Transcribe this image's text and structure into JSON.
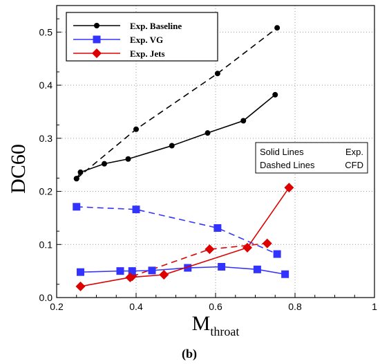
{
  "chart_data": {
    "type": "line",
    "xlabel_main": "M",
    "xlabel_sub": "throat",
    "ylabel": "DC60",
    "xlim": [
      0.2,
      1.0
    ],
    "ylim": [
      0.0,
      0.55
    ],
    "x_ticks": [
      0.2,
      0.4,
      0.6,
      0.8,
      1.0
    ],
    "x_tick_labels": [
      "0.2",
      "0.4",
      "0.6",
      "0.8",
      "1"
    ],
    "y_ticks": [
      0.0,
      0.1,
      0.2,
      0.3,
      0.4,
      0.5
    ],
    "y_tick_labels": [
      "0.0",
      "0.1",
      "0.2",
      "0.3",
      "0.4",
      "0.5"
    ],
    "grid": "dotted",
    "legend_position": "top-left",
    "note_lines": [
      [
        "Solid Lines",
        "Exp."
      ],
      [
        "Dashed Lines",
        "CFD"
      ]
    ],
    "panel_label": "(b)",
    "series": [
      {
        "name": "Exp. Baseline",
        "color": "#000000",
        "marker": "circle",
        "line": "solid",
        "x": [
          0.25,
          0.26,
          0.32,
          0.38,
          0.49,
          0.58,
          0.67,
          0.75
        ],
        "y": [
          0.224,
          0.236,
          0.252,
          0.261,
          0.286,
          0.31,
          0.333,
          0.382
        ]
      },
      {
        "name": "Exp. VG",
        "color": "#3333ff",
        "marker": "square",
        "line": "solid",
        "x": [
          0.26,
          0.36,
          0.39,
          0.44,
          0.53,
          0.615,
          0.705,
          0.775
        ],
        "y": [
          0.048,
          0.05,
          0.05,
          0.051,
          0.056,
          0.058,
          0.053,
          0.044
        ]
      },
      {
        "name": "Exp. Jets",
        "color": "#dd0000",
        "marker": "diamond",
        "line": "solid",
        "x": [
          0.26,
          0.385,
          0.47,
          0.68,
          0.785
        ],
        "y": [
          0.021,
          0.038,
          0.043,
          0.094,
          0.207
        ]
      },
      {
        "name": "",
        "color": "#000000",
        "marker": "circle",
        "line": "dashed",
        "x": [
          0.25,
          0.4,
          0.605,
          0.755
        ],
        "y": [
          0.224,
          0.317,
          0.422,
          0.508
        ]
      },
      {
        "name": "",
        "color": "#3333ff",
        "marker": "square",
        "line": "dashed",
        "x": [
          0.25,
          0.4,
          0.605,
          0.755
        ],
        "y": [
          0.171,
          0.166,
          0.131,
          0.082
        ]
      },
      {
        "name": "",
        "color": "#dd0000",
        "marker": "diamond",
        "line": "dashed",
        "x": [
          0.39,
          0.585,
          0.73
        ],
        "y": [
          0.04,
          0.091,
          0.102
        ]
      }
    ]
  }
}
